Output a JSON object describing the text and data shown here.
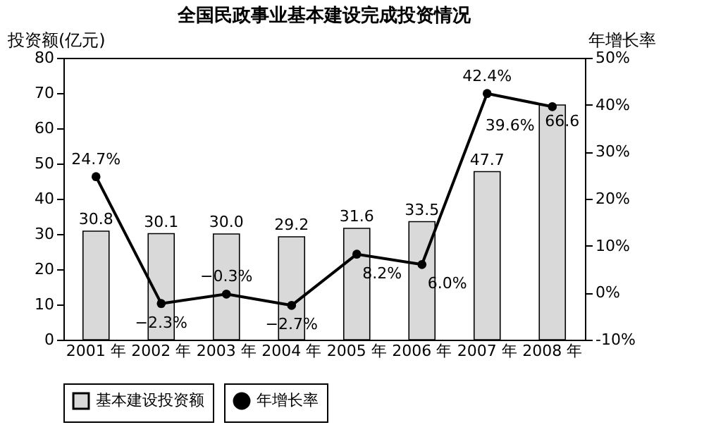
{
  "chart_data": {
    "type": "bar",
    "title": "全国民政事业基本建设完成投资情况",
    "ylabel": "投资额(亿元)",
    "y2label": "年增长率",
    "categories": [
      "2001 年",
      "2002 年",
      "2003 年",
      "2004 年",
      "2005 年",
      "2006 年",
      "2007 年",
      "2008 年"
    ],
    "series": [
      {
        "name": "基本建设投资额",
        "color": "#d9d9d9",
        "values": [
          30.8,
          30.1,
          30.0,
          29.2,
          31.6,
          33.5,
          47.7,
          66.6
        ],
        "value_labels": [
          "30.8",
          "30.1",
          "30.0",
          "29.2",
          "31.6",
          "33.5",
          "47.7",
          "66.6"
        ]
      },
      {
        "name": "年增长率",
        "type": "line",
        "axis": "y2",
        "color": "#000000",
        "marker": "circle",
        "values": [
          24.7,
          -2.3,
          -0.3,
          -2.7,
          8.2,
          6.0,
          42.4,
          39.6
        ],
        "value_labels": [
          "24.7%",
          "−2.3%",
          "−0.3%",
          "−2.7%",
          "8.2%",
          "6.0%",
          "42.4%",
          "39.6%"
        ]
      }
    ],
    "ylim": [
      0,
      80
    ],
    "yticks": [
      0,
      10,
      20,
      30,
      40,
      50,
      60,
      70,
      80
    ],
    "y2lim": [
      -10,
      50
    ],
    "y2ticks": [
      {
        "value": -10,
        "label": "-10%"
      },
      {
        "value": 0,
        "label": "0%"
      },
      {
        "value": 10,
        "label": "10%"
      },
      {
        "value": 20,
        "label": "20%"
      },
      {
        "value": 30,
        "label": "30%"
      },
      {
        "value": 40,
        "label": "40%"
      },
      {
        "value": 50,
        "label": "50%"
      }
    ],
    "grid": false,
    "legend": "bottom"
  }
}
